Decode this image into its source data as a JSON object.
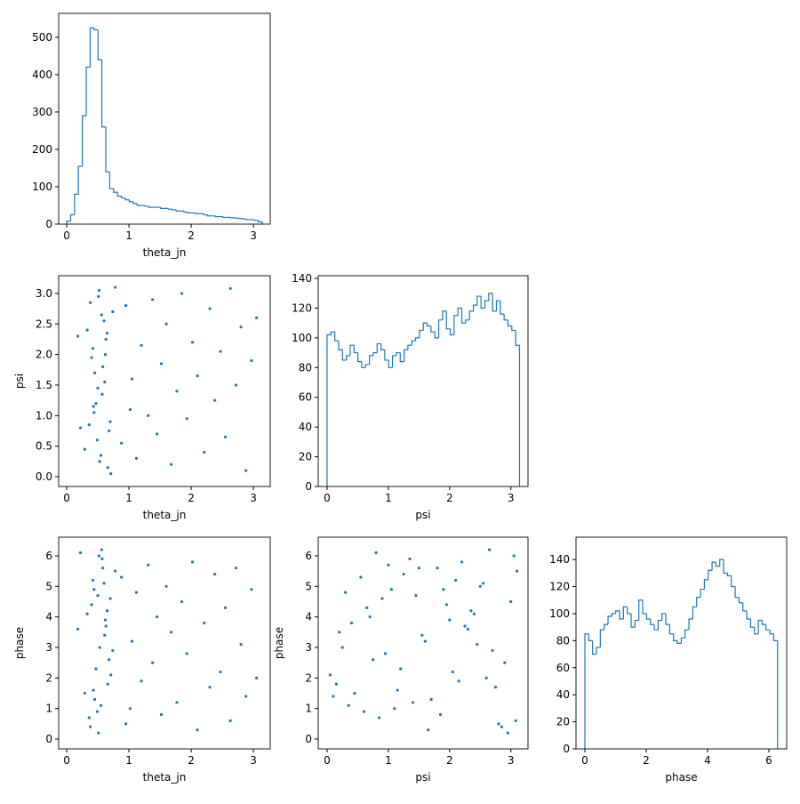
{
  "chart_data": [
    {
      "type": "histogram",
      "xlabel": "theta_jn",
      "color": "#1f77b4",
      "bins": [
        0,
        0.063,
        0.126,
        0.188,
        0.251,
        0.314,
        0.377,
        0.44,
        0.503,
        0.565,
        0.628,
        0.691,
        0.754,
        0.817,
        0.88,
        0.942,
        1.005,
        1.068,
        1.131,
        1.194,
        1.257,
        1.319,
        1.382,
        1.445,
        1.508,
        1.571,
        1.634,
        1.696,
        1.759,
        1.822,
        1.885,
        1.948,
        2.011,
        2.073,
        2.136,
        2.199,
        2.262,
        2.325,
        2.388,
        2.45,
        2.513,
        2.576,
        2.639,
        2.702,
        2.765,
        2.827,
        2.89,
        2.953,
        3.016,
        3.079,
        3.142
      ],
      "values": [
        8,
        25,
        80,
        155,
        290,
        420,
        525,
        520,
        440,
        260,
        140,
        95,
        85,
        75,
        70,
        65,
        60,
        55,
        50,
        50,
        48,
        45,
        45,
        45,
        42,
        42,
        40,
        38,
        35,
        35,
        32,
        30,
        30,
        28,
        28,
        25,
        22,
        22,
        20,
        20,
        18,
        18,
        17,
        16,
        15,
        14,
        12,
        12,
        10,
        6
      ],
      "xlim": [
        -0.129,
        3.27
      ],
      "ylim": [
        0,
        564
      ],
      "xticks": [
        0,
        1,
        2,
        3
      ],
      "yticks": [
        0,
        100,
        200,
        300,
        400,
        500
      ]
    },
    {
      "type": "scatter",
      "xlabel": "theta_jn",
      "ylabel": "psi",
      "color": "#1f77b4",
      "x": [
        0.42,
        0.55,
        0.61,
        0.38,
        0.7,
        0.47,
        0.52,
        0.66,
        0.33,
        0.58,
        0.49,
        0.74,
        0.44,
        0.63,
        0.29,
        0.57,
        0.51,
        0.68,
        0.4,
        0.6,
        0.53,
        0.45,
        0.78,
        0.36,
        0.62,
        0.5,
        0.71,
        0.56,
        0.43,
        0.65,
        0.88,
        0.95,
        1.05,
        1.12,
        1.2,
        1.31,
        1.38,
        1.45,
        1.52,
        1.6,
        1.68,
        1.77,
        1.85,
        1.93,
        2.02,
        2.1,
        2.21,
        2.3,
        2.38,
        2.47,
        2.55,
        2.63,
        2.72,
        2.8,
        2.88,
        2.97,
        3.05,
        0.22,
        0.18,
        1.02
      ],
      "y": [
        2.1,
        0.35,
        1.55,
        2.85,
        0.9,
        1.2,
        3.05,
        0.15,
        2.4,
        1.8,
        0.6,
        2.7,
        1.05,
        2.25,
        0.45,
        1.35,
        2.95,
        0.75,
        1.95,
        2.55,
        0.25,
        1.7,
        3.1,
        0.85,
        2.0,
        1.45,
        0.05,
        2.65,
        1.15,
        2.35,
        0.55,
        2.8,
        1.6,
        0.3,
        2.15,
        1.0,
        2.9,
        0.7,
        1.85,
        2.5,
        0.2,
        1.4,
        3.0,
        0.95,
        2.2,
        1.65,
        0.4,
        2.75,
        1.25,
        2.05,
        0.65,
        3.08,
        1.5,
        2.45,
        0.1,
        1.9,
        2.6,
        0.8,
        2.3,
        1.1
      ],
      "xlim": [
        -0.129,
        3.27
      ],
      "ylim": [
        -0.16,
        3.29
      ],
      "xticks": [
        0,
        1,
        2,
        3
      ],
      "yticks": [
        {
          "value": 0,
          "label": "0.0"
        },
        0.5,
        {
          "value": 1,
          "label": "1.0"
        },
        1.5,
        {
          "value": 2,
          "label": "2.0"
        },
        2.5,
        {
          "value": 3,
          "label": "3.0"
        }
      ]
    },
    {
      "type": "histogram",
      "xlabel": "psi",
      "color": "#1f77b4",
      "bins": [
        0,
        0.063,
        0.126,
        0.188,
        0.251,
        0.314,
        0.377,
        0.44,
        0.503,
        0.565,
        0.628,
        0.691,
        0.754,
        0.817,
        0.88,
        0.942,
        1.005,
        1.068,
        1.131,
        1.194,
        1.257,
        1.319,
        1.382,
        1.445,
        1.508,
        1.571,
        1.634,
        1.696,
        1.759,
        1.822,
        1.885,
        1.948,
        2.011,
        2.073,
        2.136,
        2.199,
        2.262,
        2.325,
        2.388,
        2.45,
        2.513,
        2.576,
        2.639,
        2.702,
        2.765,
        2.827,
        2.89,
        2.953,
        3.016,
        3.079,
        3.142
      ],
      "values": [
        102,
        104,
        98,
        92,
        85,
        88,
        95,
        90,
        84,
        80,
        82,
        88,
        90,
        96,
        92,
        85,
        80,
        88,
        90,
        84,
        92,
        95,
        98,
        100,
        105,
        110,
        108,
        104,
        100,
        112,
        118,
        106,
        102,
        115,
        120,
        110,
        112,
        118,
        122,
        128,
        120,
        125,
        130,
        118,
        125,
        116,
        112,
        108,
        105,
        95
      ],
      "xlim": [
        -0.145,
        3.28
      ],
      "ylim": [
        0,
        141.8
      ],
      "xticks": [
        0,
        1,
        2,
        3
      ],
      "yticks": [
        0,
        20,
        40,
        60,
        80,
        100,
        120,
        140
      ]
    },
    {
      "type": "scatter",
      "xlabel": "theta_jn",
      "ylabel": "phase",
      "color": "#1f77b4",
      "x": [
        0.42,
        0.55,
        0.61,
        0.38,
        0.7,
        0.47,
        0.52,
        0.66,
        0.33,
        0.58,
        0.49,
        0.74,
        0.44,
        0.63,
        0.29,
        0.57,
        0.51,
        0.68,
        0.4,
        0.6,
        0.53,
        0.45,
        0.78,
        0.36,
        0.62,
        0.5,
        0.71,
        0.56,
        0.43,
        0.65,
        0.88,
        0.95,
        1.05,
        1.12,
        1.2,
        1.31,
        1.38,
        1.45,
        1.52,
        1.6,
        1.68,
        1.77,
        1.85,
        1.93,
        2.02,
        2.1,
        2.21,
        2.3,
        2.38,
        2.47,
        2.55,
        2.63,
        2.72,
        2.8,
        2.88,
        2.97,
        3.05,
        0.22,
        0.18,
        1.02
      ],
      "y": [
        5.2,
        1.1,
        3.4,
        0.4,
        4.6,
        2.3,
        6.0,
        1.8,
        4.1,
        5.6,
        0.9,
        2.9,
        4.9,
        3.7,
        1.5,
        5.9,
        0.2,
        2.6,
        4.4,
        5.1,
        3.0,
        1.3,
        5.5,
        0.7,
        3.9,
        4.7,
        2.1,
        6.2,
        1.6,
        4.2,
        5.3,
        0.5,
        3.2,
        4.8,
        1.9,
        5.7,
        2.5,
        4.0,
        0.8,
        5.0,
        3.5,
        1.2,
        4.5,
        2.8,
        5.8,
        0.3,
        3.8,
        1.7,
        5.4,
        2.2,
        4.3,
        0.6,
        5.6,
        3.1,
        1.4,
        4.9,
        2.0,
        6.1,
        3.6,
        1.0
      ],
      "xlim": [
        -0.129,
        3.27
      ],
      "ylim": [
        -0.32,
        6.61
      ],
      "xticks": [
        0,
        1,
        2,
        3
      ],
      "yticks": [
        0,
        1,
        2,
        3,
        4,
        5,
        6
      ]
    },
    {
      "type": "scatter",
      "xlabel": "psi",
      "ylabel": "phase",
      "color": "#1f77b4",
      "x": [
        2.1,
        0.35,
        1.55,
        2.85,
        0.9,
        1.2,
        3.05,
        0.15,
        2.4,
        1.8,
        0.6,
        2.7,
        1.05,
        2.25,
        0.45,
        1.35,
        2.95,
        0.75,
        1.95,
        2.55,
        0.25,
        1.7,
        3.1,
        0.85,
        2.0,
        1.45,
        0.05,
        2.65,
        1.15,
        2.35,
        0.55,
        2.8,
        1.6,
        0.3,
        2.15,
        1.0,
        2.9,
        0.7,
        1.85,
        2.5,
        0.2,
        1.4,
        3.0,
        0.95,
        2.2,
        1.65,
        0.4,
        2.75,
        1.25,
        2.05,
        0.65,
        3.08,
        1.5,
        2.45,
        0.1,
        1.9,
        2.6,
        0.8,
        2.3,
        1.1
      ],
      "y": [
        5.2,
        1.1,
        3.4,
        0.4,
        4.6,
        2.3,
        6.0,
        1.8,
        4.1,
        5.6,
        0.9,
        2.9,
        4.9,
        3.7,
        1.5,
        5.9,
        0.2,
        2.6,
        4.4,
        5.1,
        3.0,
        1.3,
        5.5,
        0.7,
        3.9,
        4.7,
        2.1,
        6.2,
        1.6,
        4.2,
        5.3,
        0.5,
        3.2,
        4.8,
        1.9,
        5.7,
        2.5,
        4.0,
        0.8,
        5.0,
        3.5,
        1.2,
        4.5,
        2.8,
        5.8,
        0.3,
        3.8,
        1.7,
        5.4,
        2.2,
        4.3,
        0.6,
        5.6,
        3.1,
        1.4,
        4.9,
        2.0,
        6.1,
        3.6,
        1.0
      ],
      "xlim": [
        -0.145,
        3.28
      ],
      "ylim": [
        -0.32,
        6.61
      ],
      "xticks": [
        0,
        1,
        2,
        3
      ],
      "yticks": [
        0,
        1,
        2,
        3,
        4,
        5,
        6
      ]
    },
    {
      "type": "histogram",
      "xlabel": "phase",
      "color": "#1f77b4",
      "bins": [
        0,
        0.126,
        0.251,
        0.377,
        0.503,
        0.628,
        0.754,
        0.88,
        1.005,
        1.131,
        1.257,
        1.382,
        1.508,
        1.634,
        1.759,
        1.885,
        2.011,
        2.136,
        2.262,
        2.388,
        2.513,
        2.639,
        2.765,
        2.89,
        3.016,
        3.142,
        3.267,
        3.393,
        3.519,
        3.644,
        3.77,
        3.896,
        4.021,
        4.147,
        4.273,
        4.398,
        4.524,
        4.65,
        4.775,
        4.901,
        5.027,
        5.152,
        5.278,
        5.404,
        5.529,
        5.655,
        5.781,
        5.906,
        6.032,
        6.158,
        6.283
      ],
      "values": [
        85,
        80,
        70,
        75,
        88,
        92,
        98,
        100,
        102,
        96,
        105,
        100,
        90,
        95,
        110,
        100,
        96,
        92,
        88,
        95,
        100,
        92,
        85,
        80,
        78,
        82,
        88,
        96,
        105,
        112,
        118,
        125,
        132,
        138,
        135,
        140,
        130,
        128,
        120,
        112,
        108,
        102,
        96,
        90,
        85,
        95,
        92,
        88,
        85,
        80
      ],
      "xlim": [
        -0.29,
        6.58
      ],
      "ylim": [
        0,
        156.5
      ],
      "xticks": [
        0,
        2,
        4,
        6
      ],
      "yticks": [
        0,
        20,
        40,
        60,
        80,
        100,
        120,
        140
      ]
    }
  ]
}
